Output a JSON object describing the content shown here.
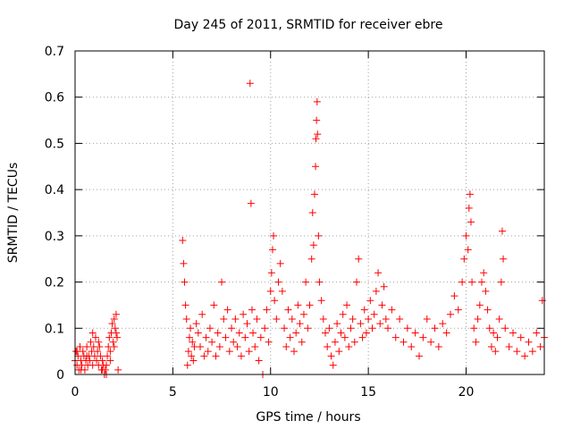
{
  "chart_data": {
    "type": "scatter",
    "title": "Day 245 of 2011, SRMTID for receiver ebre",
    "xlabel": "GPS time / hours",
    "ylabel": "SRMTID / TECUs",
    "xlim": [
      0,
      24
    ],
    "ylim": [
      0,
      0.7
    ],
    "x_ticks": [
      0,
      5,
      10,
      15,
      20
    ],
    "y_ticks": [
      0,
      0.1,
      0.2,
      0.3,
      0.4,
      0.5,
      0.6,
      0.7
    ],
    "x_tick_labels": [
      "0",
      "5",
      "10",
      "15",
      "20"
    ],
    "y_tick_labels": [
      "0",
      "0.1",
      "0.2",
      "0.3",
      "0.4",
      "0.5",
      "0.6",
      "0.7"
    ],
    "grid": true,
    "marker": "+",
    "color": "#ff0000",
    "series": [
      {
        "name": "SRMTID",
        "points": [
          [
            0.0,
            0.03
          ],
          [
            0.05,
            0.05
          ],
          [
            0.1,
            0.02
          ],
          [
            0.15,
            0.04
          ],
          [
            0.2,
            0.01
          ],
          [
            0.25,
            0.06
          ],
          [
            0.3,
            0.03
          ],
          [
            0.35,
            0.02
          ],
          [
            0.4,
            0.05
          ],
          [
            0.45,
            0.04
          ],
          [
            0.5,
            0.01
          ],
          [
            0.55,
            0.03
          ],
          [
            0.6,
            0.06
          ],
          [
            0.65,
            0.02
          ],
          [
            0.7,
            0.04
          ],
          [
            0.75,
            0.03
          ],
          [
            0.8,
            0.07
          ],
          [
            0.85,
            0.05
          ],
          [
            0.9,
            0.09
          ],
          [
            0.95,
            0.06
          ],
          [
            1.0,
            0.04
          ],
          [
            1.05,
            0.08
          ],
          [
            1.1,
            0.03
          ],
          [
            1.15,
            0.05
          ],
          [
            1.2,
            0.02
          ],
          [
            1.25,
            0.06
          ],
          [
            1.3,
            0.04
          ],
          [
            1.35,
            0.01
          ],
          [
            1.4,
            0.03
          ],
          [
            1.45,
            0.02
          ],
          [
            1.5,
            0.0
          ],
          [
            1.55,
            0.01
          ],
          [
            1.6,
            0.02
          ],
          [
            1.65,
            0.04
          ],
          [
            1.7,
            0.06
          ],
          [
            1.75,
            0.08
          ],
          [
            1.8,
            0.05
          ],
          [
            1.85,
            0.09
          ],
          [
            1.9,
            0.11
          ],
          [
            1.95,
            0.07
          ],
          [
            2.0,
            0.12
          ],
          [
            2.05,
            0.1
          ],
          [
            2.1,
            0.13
          ],
          [
            2.15,
            0.08
          ],
          [
            2.2,
            0.01
          ],
          [
            0.1,
            0.05
          ],
          [
            0.3,
            0.01
          ],
          [
            0.6,
            0.04
          ],
          [
            0.9,
            0.02
          ],
          [
            1.2,
            0.07
          ],
          [
            1.4,
            0.01
          ],
          [
            1.6,
            0.0
          ],
          [
            1.8,
            0.03
          ],
          [
            2.0,
            0.06
          ],
          [
            2.1,
            0.09
          ],
          [
            5.5,
            0.29
          ],
          [
            5.55,
            0.24
          ],
          [
            5.6,
            0.2
          ],
          [
            5.65,
            0.15
          ],
          [
            5.7,
            0.12
          ],
          [
            5.75,
            0.02
          ],
          [
            5.8,
            0.05
          ],
          [
            5.85,
            0.08
          ],
          [
            5.9,
            0.1
          ],
          [
            5.95,
            0.04
          ],
          [
            6.0,
            0.07
          ],
          [
            6.05,
            0.03
          ],
          [
            6.1,
            0.06
          ],
          [
            6.2,
            0.11
          ],
          [
            6.3,
            0.09
          ],
          [
            6.4,
            0.06
          ],
          [
            6.5,
            0.13
          ],
          [
            6.6,
            0.04
          ],
          [
            6.7,
            0.08
          ],
          [
            6.8,
            0.05
          ],
          [
            6.9,
            0.1
          ],
          [
            7.0,
            0.07
          ],
          [
            7.1,
            0.15
          ],
          [
            7.2,
            0.04
          ],
          [
            7.3,
            0.09
          ],
          [
            7.4,
            0.06
          ],
          [
            7.5,
            0.2
          ],
          [
            7.6,
            0.12
          ],
          [
            7.7,
            0.08
          ],
          [
            7.8,
            0.14
          ],
          [
            7.9,
            0.05
          ],
          [
            8.0,
            0.1
          ],
          [
            8.1,
            0.07
          ],
          [
            8.2,
            0.12
          ],
          [
            8.3,
            0.06
          ],
          [
            8.4,
            0.09
          ],
          [
            8.5,
            0.04
          ],
          [
            8.6,
            0.13
          ],
          [
            8.7,
            0.08
          ],
          [
            8.8,
            0.11
          ],
          [
            8.9,
            0.05
          ],
          [
            8.95,
            0.63
          ],
          [
            9.0,
            0.37
          ],
          [
            9.05,
            0.14
          ],
          [
            9.1,
            0.09
          ],
          [
            9.2,
            0.06
          ],
          [
            9.3,
            0.12
          ],
          [
            9.4,
            0.03
          ],
          [
            9.5,
            0.08
          ],
          [
            9.6,
            0.0
          ],
          [
            9.7,
            0.1
          ],
          [
            9.8,
            0.14
          ],
          [
            9.9,
            0.07
          ],
          [
            10.0,
            0.18
          ],
          [
            10.05,
            0.22
          ],
          [
            10.1,
            0.27
          ],
          [
            10.15,
            0.3
          ],
          [
            10.2,
            0.16
          ],
          [
            10.3,
            0.12
          ],
          [
            10.4,
            0.2
          ],
          [
            10.5,
            0.24
          ],
          [
            10.6,
            0.18
          ],
          [
            10.7,
            0.1
          ],
          [
            10.8,
            0.06
          ],
          [
            10.9,
            0.14
          ],
          [
            11.0,
            0.08
          ],
          [
            11.1,
            0.12
          ],
          [
            11.2,
            0.05
          ],
          [
            11.3,
            0.09
          ],
          [
            11.4,
            0.15
          ],
          [
            11.5,
            0.11
          ],
          [
            11.6,
            0.07
          ],
          [
            11.7,
            0.13
          ],
          [
            11.8,
            0.2
          ],
          [
            11.9,
            0.1
          ],
          [
            12.0,
            0.15
          ],
          [
            12.1,
            0.25
          ],
          [
            12.15,
            0.35
          ],
          [
            12.2,
            0.28
          ],
          [
            12.25,
            0.39
          ],
          [
            12.3,
            0.45
          ],
          [
            12.32,
            0.51
          ],
          [
            12.35,
            0.55
          ],
          [
            12.38,
            0.59
          ],
          [
            12.4,
            0.52
          ],
          [
            12.45,
            0.3
          ],
          [
            12.5,
            0.2
          ],
          [
            12.6,
            0.16
          ],
          [
            12.7,
            0.12
          ],
          [
            12.8,
            0.09
          ],
          [
            12.9,
            0.06
          ],
          [
            13.0,
            0.1
          ],
          [
            13.1,
            0.04
          ],
          [
            13.2,
            0.02
          ],
          [
            13.3,
            0.07
          ],
          [
            13.4,
            0.11
          ],
          [
            13.5,
            0.05
          ],
          [
            13.6,
            0.09
          ],
          [
            13.7,
            0.13
          ],
          [
            13.8,
            0.08
          ],
          [
            13.9,
            0.15
          ],
          [
            14.0,
            0.06
          ],
          [
            14.1,
            0.1
          ],
          [
            14.2,
            0.12
          ],
          [
            14.3,
            0.07
          ],
          [
            14.4,
            0.2
          ],
          [
            14.5,
            0.25
          ],
          [
            14.6,
            0.11
          ],
          [
            14.7,
            0.08
          ],
          [
            14.8,
            0.14
          ],
          [
            14.9,
            0.09
          ],
          [
            15.0,
            0.12
          ],
          [
            15.1,
            0.16
          ],
          [
            15.2,
            0.1
          ],
          [
            15.3,
            0.13
          ],
          [
            15.4,
            0.18
          ],
          [
            15.5,
            0.22
          ],
          [
            15.6,
            0.11
          ],
          [
            15.7,
            0.15
          ],
          [
            15.8,
            0.19
          ],
          [
            15.9,
            0.12
          ],
          [
            16.0,
            0.1
          ],
          [
            16.2,
            0.14
          ],
          [
            16.4,
            0.08
          ],
          [
            16.6,
            0.12
          ],
          [
            16.8,
            0.07
          ],
          [
            17.0,
            0.1
          ],
          [
            17.2,
            0.06
          ],
          [
            17.4,
            0.09
          ],
          [
            17.6,
            0.04
          ],
          [
            17.8,
            0.08
          ],
          [
            18.0,
            0.12
          ],
          [
            18.2,
            0.07
          ],
          [
            18.4,
            0.1
          ],
          [
            18.6,
            0.06
          ],
          [
            18.8,
            0.11
          ],
          [
            19.0,
            0.09
          ],
          [
            19.2,
            0.13
          ],
          [
            19.4,
            0.17
          ],
          [
            19.6,
            0.14
          ],
          [
            19.8,
            0.2
          ],
          [
            19.9,
            0.25
          ],
          [
            20.0,
            0.3
          ],
          [
            20.1,
            0.27
          ],
          [
            20.15,
            0.36
          ],
          [
            20.2,
            0.39
          ],
          [
            20.25,
            0.33
          ],
          [
            20.3,
            0.2
          ],
          [
            20.4,
            0.1
          ],
          [
            20.5,
            0.07
          ],
          [
            20.6,
            0.12
          ],
          [
            20.7,
            0.15
          ],
          [
            20.8,
            0.2
          ],
          [
            20.9,
            0.22
          ],
          [
            21.0,
            0.18
          ],
          [
            21.1,
            0.14
          ],
          [
            21.2,
            0.1
          ],
          [
            21.3,
            0.06
          ],
          [
            21.4,
            0.09
          ],
          [
            21.5,
            0.05
          ],
          [
            21.6,
            0.08
          ],
          [
            21.7,
            0.12
          ],
          [
            21.8,
            0.2
          ],
          [
            21.85,
            0.31
          ],
          [
            21.9,
            0.25
          ],
          [
            22.0,
            0.1
          ],
          [
            22.2,
            0.06
          ],
          [
            22.4,
            0.09
          ],
          [
            22.6,
            0.05
          ],
          [
            22.8,
            0.08
          ],
          [
            23.0,
            0.04
          ],
          [
            23.2,
            0.07
          ],
          [
            23.4,
            0.05
          ],
          [
            23.6,
            0.09
          ],
          [
            23.8,
            0.06
          ],
          [
            23.9,
            0.16
          ],
          [
            24.0,
            0.08
          ]
        ]
      }
    ]
  }
}
